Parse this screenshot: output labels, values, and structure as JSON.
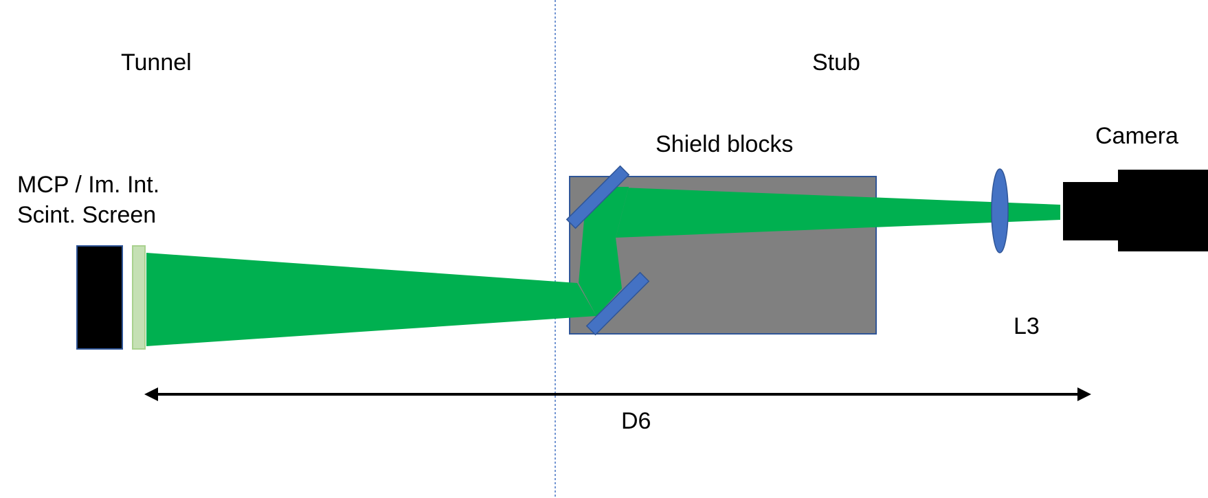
{
  "labels": {
    "tunnel": "Tunnel",
    "stub": "Stub",
    "shield_blocks": "Shield blocks",
    "camera": "Camera",
    "detector_line1": "MCP / Im. Int.",
    "detector_line2": "Scint. Screen",
    "lens": "L3",
    "distance": "D6"
  },
  "colors": {
    "beam": "#00b050",
    "shield_fill": "#808080",
    "shield_border": "#2f5597",
    "mirror": "#4472c4",
    "lens": "#4472c4",
    "camera": "#000000",
    "detector": "#000000",
    "screen": "#c5e0b4",
    "divider": "#4472c4",
    "dimension_arrow": "#000000"
  }
}
